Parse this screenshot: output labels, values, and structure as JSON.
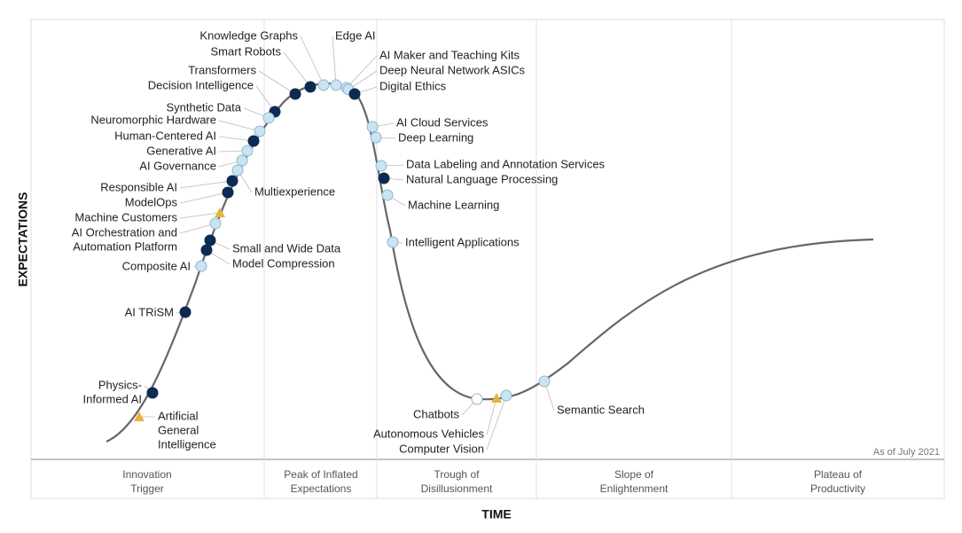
{
  "axis_y": "EXPECTATIONS",
  "axis_x": "TIME",
  "note": "As of July 2021",
  "phases": [
    {
      "lines": [
        "Innovation",
        "Trigger"
      ]
    },
    {
      "lines": [
        "Peak of Inflated",
        "Expectations"
      ]
    },
    {
      "lines": [
        "Trough of",
        "Disillusionment"
      ]
    },
    {
      "lines": [
        "Slope of",
        "Enlightenment"
      ]
    },
    {
      "lines": [
        "Plateau of",
        "Productivity"
      ]
    }
  ],
  "items": [
    {
      "lines": [
        "Knowledge Graphs"
      ],
      "color": "#c9e4f2",
      "marker": "circle"
    },
    {
      "lines": [
        "Smart Robots"
      ],
      "color": "#0d2a52",
      "marker": "circle"
    },
    {
      "lines": [
        "Edge AI"
      ],
      "color": "#c9e4f2",
      "marker": "circle"
    },
    {
      "lines": [
        "AI Maker and Teaching Kits"
      ],
      "color": "#c9e4f2",
      "marker": "circle"
    },
    {
      "lines": [
        "Deep Neural Network ASICs"
      ],
      "color": "#c9e4f2",
      "marker": "circle"
    },
    {
      "lines": [
        "Digital Ethics"
      ],
      "color": "#0d2a52",
      "marker": "circle"
    },
    {
      "lines": [
        "Transformers"
      ],
      "color": "#0d2a52",
      "marker": "circle"
    },
    {
      "lines": [
        "Decision Intelligence"
      ],
      "color": "#0d2a52",
      "marker": "circle"
    },
    {
      "lines": [
        "Synthetic Data"
      ],
      "color": "#c9e4f2",
      "marker": "circle"
    },
    {
      "lines": [
        "Neuromorphic Hardware"
      ],
      "color": "#c9e4f2",
      "marker": "circle"
    },
    {
      "lines": [
        "Human-Centered AI"
      ],
      "color": "#0d2a52",
      "marker": "circle"
    },
    {
      "lines": [
        "Generative AI"
      ],
      "color": "#c9e4f2",
      "marker": "circle"
    },
    {
      "lines": [
        "AI Governance"
      ],
      "color": "#c9e4f2",
      "marker": "circle"
    },
    {
      "lines": [
        "Multiexperience"
      ],
      "color": "#c9e4f2",
      "marker": "circle"
    },
    {
      "lines": [
        "Responsible AI"
      ],
      "color": "#0d2a52",
      "marker": "circle"
    },
    {
      "lines": [
        "ModelOps"
      ],
      "color": "#0d2a52",
      "marker": "circle"
    },
    {
      "lines": [
        "Machine Customers"
      ],
      "color": "#e6b43c",
      "marker": "triangle"
    },
    {
      "lines": [
        "AI Orchestration and",
        "Automation Platform"
      ],
      "color": "#c9e4f2",
      "marker": "circle"
    },
    {
      "lines": [
        "Small and Wide Data"
      ],
      "color": "#0d2a52",
      "marker": "circle"
    },
    {
      "lines": [
        "Model Compression"
      ],
      "color": "#0d2a52",
      "marker": "circle"
    },
    {
      "lines": [
        "Composite AI"
      ],
      "color": "#c9e4f2",
      "marker": "circle"
    },
    {
      "lines": [
        "AI TRiSM"
      ],
      "color": "#0d2a52",
      "marker": "circle"
    },
    {
      "lines": [
        "Physics-",
        "Informed AI"
      ],
      "color": "#0d2a52",
      "marker": "circle"
    },
    {
      "lines": [
        "Artificial",
        "General",
        "Intelligence"
      ],
      "color": "#e6b43c",
      "marker": "triangle"
    },
    {
      "lines": [
        "AI Cloud Services"
      ],
      "color": "#c9e4f2",
      "marker": "circle"
    },
    {
      "lines": [
        "Deep Learning"
      ],
      "color": "#c9e4f2",
      "marker": "circle"
    },
    {
      "lines": [
        "Data Labeling and Annotation Services"
      ],
      "color": "#c9e4f2",
      "marker": "circle"
    },
    {
      "lines": [
        "Natural Language Processing"
      ],
      "color": "#0d2a52",
      "marker": "circle"
    },
    {
      "lines": [
        "Machine Learning"
      ],
      "color": "#c9e4f2",
      "marker": "circle"
    },
    {
      "lines": [
        "Intelligent Applications"
      ],
      "color": "#c9e4f2",
      "marker": "circle"
    },
    {
      "lines": [
        "Chatbots"
      ],
      "color": "#ffffff",
      "marker": "circle"
    },
    {
      "lines": [
        "Autonomous Vehicles"
      ],
      "color": "#e6b43c",
      "marker": "triangle"
    },
    {
      "lines": [
        "Computer Vision"
      ],
      "color": "#c9e4f2",
      "marker": "circle"
    },
    {
      "lines": [
        "Semantic Search"
      ],
      "color": "#c9e4f2",
      "marker": "circle"
    }
  ]
}
